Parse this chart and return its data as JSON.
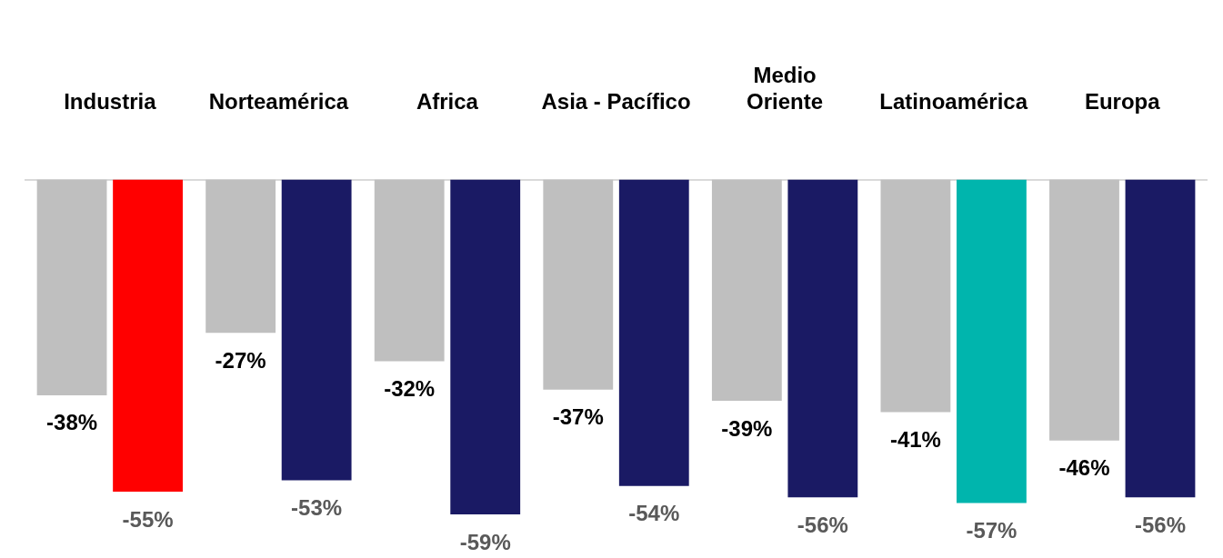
{
  "chart_data": {
    "type": "bar",
    "categories": [
      "Industria",
      "Norteamérica",
      "Africa",
      "Asia - Pacífico",
      "Medio\nOriente",
      "Latinoamérica",
      "Europa"
    ],
    "series": [
      {
        "color": "#bfbfbf",
        "values": [
          -38,
          -27,
          -32,
          -37,
          -39,
          -41,
          -46
        ],
        "value_labels": [
          "-38%",
          "-27%",
          "-32%",
          "-37%",
          "-39%",
          "-41%",
          "-46%"
        ]
      },
      {
        "colors": [
          "#ff0000",
          "#1a1a64",
          "#1a1a64",
          "#1a1a64",
          "#1a1a64",
          "#00b5ad",
          "#1a1a64"
        ],
        "values": [
          -55,
          -53,
          -59,
          -54,
          -56,
          -57,
          -56
        ],
        "value_labels": [
          "-55%",
          "-53%",
          "-59%",
          "-54%",
          "-56%",
          "-57%",
          "-56%"
        ]
      }
    ],
    "grid": false,
    "legend": false
  }
}
